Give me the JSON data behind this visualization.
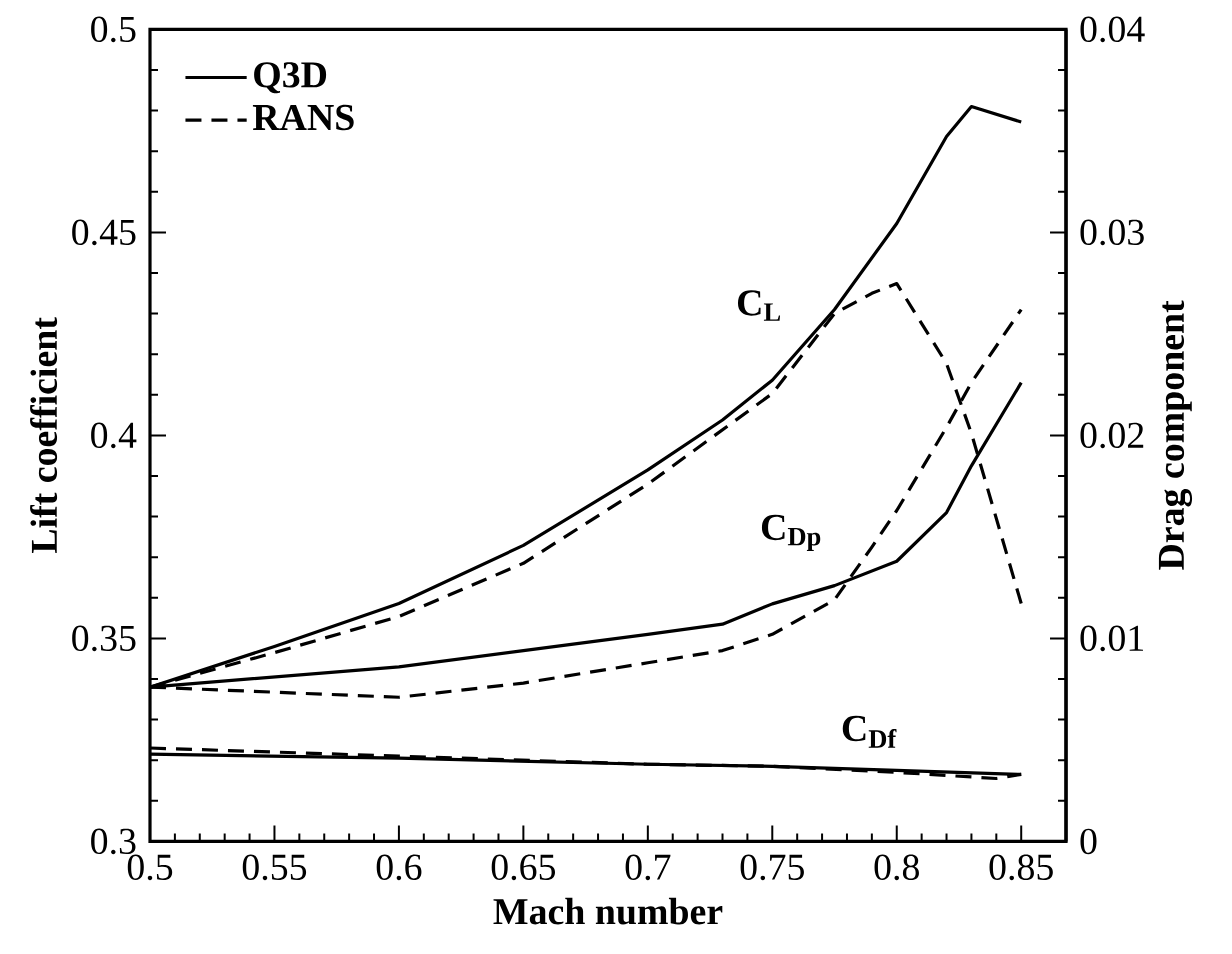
{
  "chart_data": {
    "type": "line",
    "xlabel": "Mach number",
    "ylabel": "Lift coefficient",
    "y2label": "Drag component",
    "xlim": [
      0.5,
      0.868
    ],
    "ylim": [
      0.3,
      0.5
    ],
    "y2lim": [
      0,
      0.04
    ],
    "xticks": [
      0.5,
      0.55,
      0.6,
      0.65,
      0.7,
      0.75,
      0.8,
      0.85
    ],
    "yticks": [
      0.3,
      0.35,
      0.4,
      0.45,
      0.5
    ],
    "y2ticks": [
      0,
      0.01,
      0.02,
      0.03,
      0.04
    ],
    "legend": "top left",
    "grid": false,
    "series": [
      {
        "name": "Q3D",
        "color": "#000000",
        "line_style": "solid",
        "axis": "y",
        "x": [
          0.5,
          0.55,
          0.6,
          0.65,
          0.7,
          0.73,
          0.75,
          0.775,
          0.8,
          0.82,
          0.83,
          0.85
        ],
        "values": [
          0.338,
          0.348,
          0.3586,
          0.3729,
          0.3915,
          0.4038,
          0.4136,
          0.431,
          0.4522,
          0.4736,
          0.481,
          0.4772
        ]
      },
      {
        "name": "RANS",
        "color": "#000000",
        "line_style": "dashed",
        "axis": "y",
        "x": [
          0.5,
          0.55,
          0.6,
          0.65,
          0.7,
          0.75,
          0.775,
          0.79,
          0.8,
          0.82,
          0.83,
          0.85
        ],
        "values": [
          0.338,
          0.3465,
          0.3554,
          0.3685,
          0.388,
          0.4103,
          0.43,
          0.435,
          0.4374,
          0.4177,
          0.4005,
          0.3586
        ]
      },
      {
        "color": "#000000",
        "line_style": "solid",
        "axis": "y2",
        "x": [
          0.5,
          0.6,
          0.65,
          0.7,
          0.73,
          0.75,
          0.775,
          0.8,
          0.82,
          0.83,
          0.85
        ],
        "values": [
          0.0076,
          0.0086,
          0.0094,
          0.0102,
          0.0107,
          0.0117,
          0.0126,
          0.0138,
          0.0162,
          0.0185,
          0.0226
        ]
      },
      {
        "color": "#000000",
        "line_style": "dashed",
        "axis": "y2",
        "x": [
          0.5,
          0.6,
          0.65,
          0.7,
          0.73,
          0.75,
          0.775,
          0.79,
          0.8,
          0.82,
          0.83,
          0.85
        ],
        "values": [
          0.0076,
          0.0071,
          0.0078,
          0.0088,
          0.0094,
          0.0102,
          0.0119,
          0.0145,
          0.0163,
          0.0204,
          0.0226,
          0.0262
        ]
      },
      {
        "color": "#000000",
        "line_style": "solid",
        "axis": "y2",
        "x": [
          0.5,
          0.6,
          0.7,
          0.75,
          0.8,
          0.85
        ],
        "values": [
          0.0043,
          0.0041,
          0.0038,
          0.0037,
          0.0035,
          0.0033
        ]
      },
      {
        "color": "#000000",
        "line_style": "dashed",
        "axis": "y2",
        "x": [
          0.5,
          0.6,
          0.7,
          0.75,
          0.8,
          0.84,
          0.85
        ],
        "values": [
          0.0046,
          0.0042,
          0.0038,
          0.0037,
          0.0034,
          0.0031,
          0.0033
        ]
      }
    ],
    "annotations": [
      "C$_{L}$",
      "C$_{Dp}$",
      "C$_{Df}$"
    ]
  }
}
